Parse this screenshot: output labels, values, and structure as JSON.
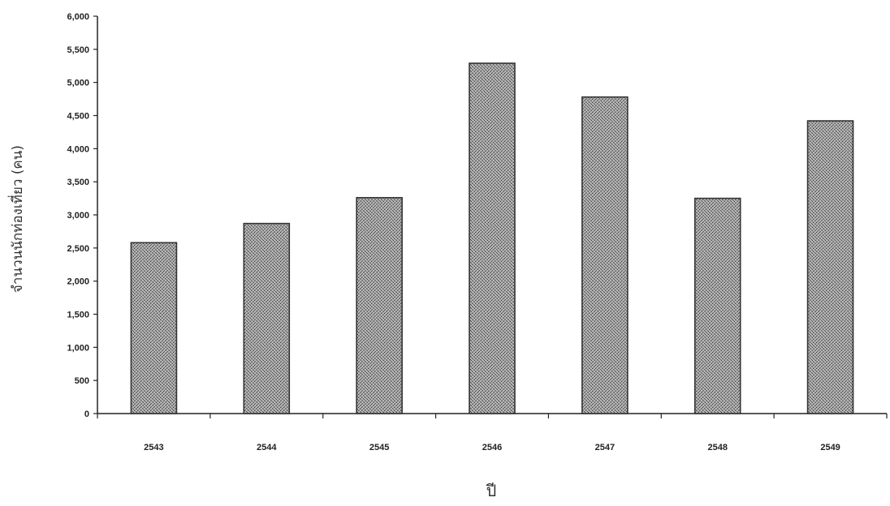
{
  "chart_data": {
    "type": "bar",
    "title": "",
    "xlabel": "ปี",
    "ylabel": "จำนวนนักท่องเที่ยว (คน)",
    "categories": [
      "2543",
      "2544",
      "2545",
      "2546",
      "2547",
      "2548",
      "2549"
    ],
    "values": [
      2580,
      2870,
      3260,
      5290,
      4780,
      3250,
      4420
    ],
    "ylim": [
      0,
      6000
    ],
    "yticks": [
      0,
      500,
      1000,
      1500,
      2000,
      2500,
      3000,
      3500,
      4000,
      4500,
      5000,
      5500,
      6000
    ],
    "ytick_labels": [
      "0",
      "500",
      "1,000",
      "1,500",
      "2,000",
      "2,500",
      "3,000",
      "3,500",
      "4,000",
      "4,500",
      "5,000",
      "5,500",
      "6,000"
    ],
    "grid": false,
    "colors": {
      "bar_fill": "#8a8a8a",
      "bar_stroke": "#333333",
      "axis": "#222222"
    }
  }
}
